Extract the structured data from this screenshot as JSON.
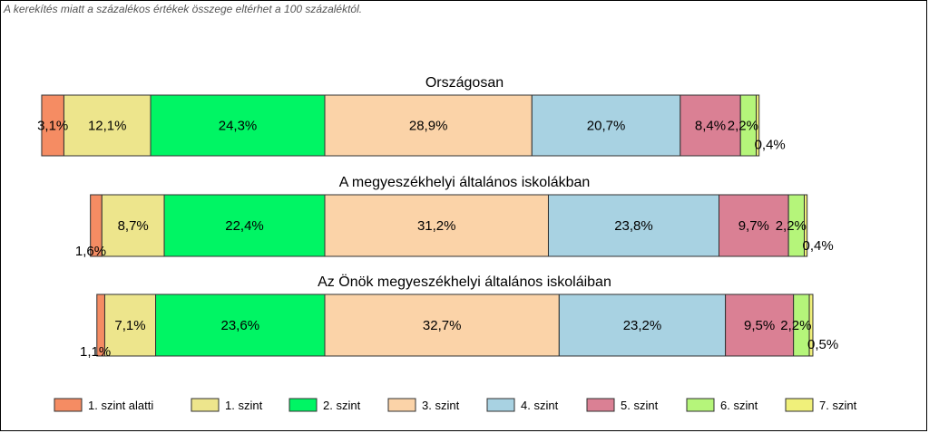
{
  "note": "A kerekítés miatt a  százalékos értékek összege eltérhet a 100 százaléktól.",
  "chart_data": {
    "type": "bar",
    "orientation": "horizontal",
    "stacked": true,
    "legend_position": "bottom",
    "legend": [
      "1. szint alatti",
      "1. szint",
      "2. szint",
      "3. szint",
      "4. szint",
      "5. szint",
      "6. szint",
      "7. szint"
    ],
    "colors": [
      "#f58c63",
      "#ede58c",
      "#00f564",
      "#fbd3a8",
      "#a8d2e2",
      "#da8094",
      "#b5f57a",
      "#f0f07a"
    ],
    "groups": [
      {
        "title": "Országosan",
        "values": [
          3.1,
          12.1,
          24.3,
          28.9,
          20.7,
          8.4,
          2.2,
          0.4
        ],
        "labels": [
          "3,1%",
          "12,1%",
          "24,3%",
          "28,9%",
          "20,7%",
          "8,4%",
          "2,2%",
          "0,4%"
        ]
      },
      {
        "title": "A megyeszékhelyi általános iskolákban",
        "values": [
          1.6,
          8.7,
          22.4,
          31.2,
          23.8,
          9.7,
          2.2,
          0.4
        ],
        "labels": [
          "1,6%",
          "8,7%",
          "22,4%",
          "31,2%",
          "23,8%",
          "9,7%",
          "2,2%",
          "0,4%"
        ]
      },
      {
        "title": "Az Önök megyeszékhelyi általános iskoláiban",
        "values": [
          1.1,
          7.1,
          23.6,
          32.7,
          23.2,
          9.5,
          2.2,
          0.5
        ],
        "labels": [
          "1,1%",
          "7,1%",
          "23,6%",
          "32,7%",
          "23,2%",
          "9,5%",
          "2,2%",
          "0,5%"
        ]
      }
    ]
  }
}
